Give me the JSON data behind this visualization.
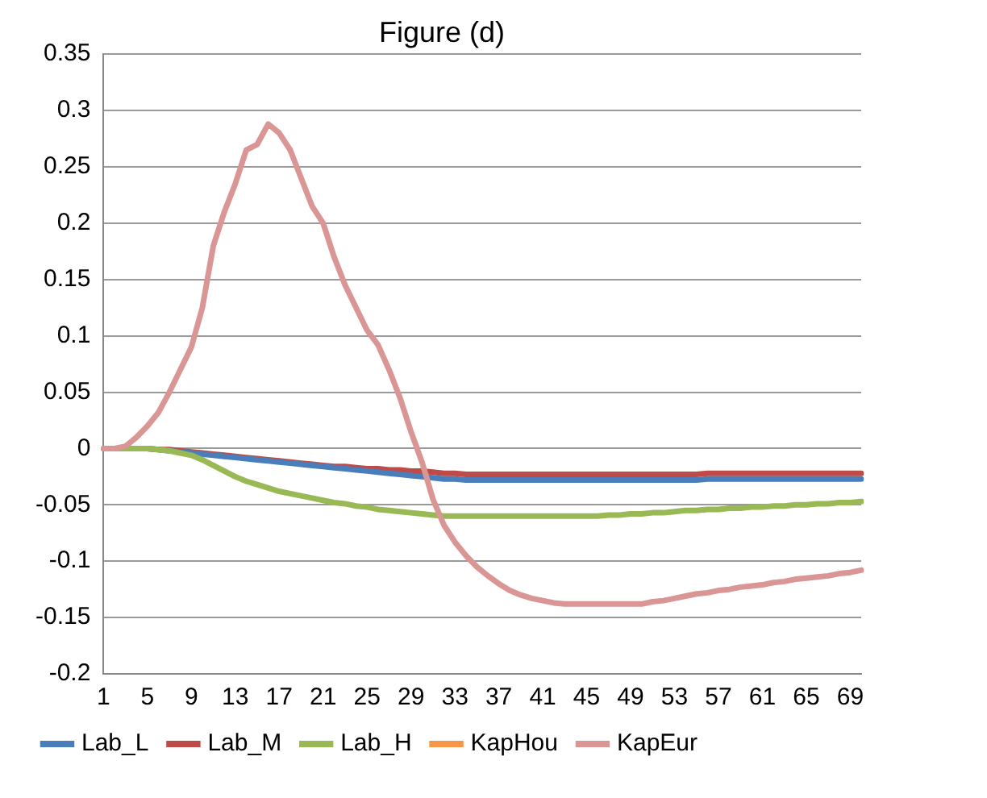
{
  "chart_data": {
    "type": "line",
    "title": "Figure (d)",
    "categories": [
      "1",
      null,
      null,
      null,
      "5",
      null,
      null,
      null,
      "9",
      null,
      null,
      null,
      "13",
      null,
      null,
      null,
      "17",
      null,
      null,
      null,
      "21",
      null,
      null,
      null,
      "25",
      null,
      null,
      null,
      "29",
      null,
      null,
      null,
      "33",
      null,
      null,
      null,
      "37",
      null,
      null,
      null,
      "41",
      null,
      null,
      null,
      "45",
      null,
      null,
      null,
      "49",
      null,
      null,
      null,
      "53",
      null,
      null,
      null,
      "57",
      null,
      null,
      null,
      "61",
      null,
      null,
      null,
      "65",
      null,
      null,
      null,
      "69",
      null
    ],
    "ylim": [
      -0.2,
      0.35
    ],
    "yticks": [
      {
        "value": -0.2,
        "label": "-0.2"
      },
      {
        "value": -0.15,
        "label": "-0.15"
      },
      {
        "value": -0.1,
        "label": "-0.1"
      },
      {
        "value": -0.05,
        "label": "-0.05"
      },
      {
        "value": 0,
        "label": "0"
      },
      {
        "value": 0.05,
        "label": "0.05"
      },
      {
        "value": 0.1,
        "label": "0.1"
      },
      {
        "value": 0.15,
        "label": "0.15"
      },
      {
        "value": 0.2,
        "label": "0.2"
      },
      {
        "value": 0.25,
        "label": "0.25"
      },
      {
        "value": 0.3,
        "label": "0.3"
      },
      {
        "value": 0.35,
        "label": "0.35"
      }
    ],
    "grid": "y",
    "legend": "bottom",
    "marker": "none",
    "line_style": "solid",
    "series": [
      {
        "name": "Lab_L",
        "color": "#4a7ebb",
        "values": [
          null,
          null,
          null,
          null,
          0,
          -0.001,
          -0.002,
          -0.003,
          -0.004,
          -0.005,
          -0.006,
          -0.007,
          -0.008,
          -0.009,
          -0.01,
          -0.011,
          -0.012,
          -0.013,
          -0.014,
          -0.015,
          -0.016,
          -0.017,
          -0.018,
          -0.019,
          -0.02,
          -0.021,
          -0.022,
          -0.023,
          -0.024,
          -0.025,
          -0.026,
          -0.027,
          -0.027,
          -0.028,
          -0.028,
          -0.028,
          -0.028,
          -0.028,
          -0.028,
          -0.028,
          -0.028,
          -0.028,
          -0.028,
          -0.028,
          -0.028,
          -0.028,
          -0.028,
          -0.028,
          -0.028,
          -0.028,
          -0.028,
          -0.028,
          -0.028,
          -0.028,
          -0.028,
          -0.027,
          -0.027,
          -0.027,
          -0.027,
          -0.027,
          -0.027,
          -0.027,
          -0.027,
          -0.027,
          -0.027,
          -0.027,
          -0.027,
          -0.027,
          -0.027,
          -0.027
        ]
      },
      {
        "name": "Lab_M",
        "color": "#be4b48",
        "values": [
          null,
          null,
          null,
          null,
          0,
          -0.001,
          -0.001,
          -0.002,
          -0.003,
          -0.004,
          -0.005,
          -0.006,
          -0.007,
          -0.008,
          -0.009,
          -0.01,
          -0.011,
          -0.012,
          -0.013,
          -0.014,
          -0.015,
          -0.016,
          -0.016,
          -0.017,
          -0.018,
          -0.018,
          -0.019,
          -0.019,
          -0.02,
          -0.02,
          -0.021,
          -0.022,
          -0.022,
          -0.023,
          -0.023,
          -0.023,
          -0.023,
          -0.023,
          -0.023,
          -0.023,
          -0.023,
          -0.023,
          -0.023,
          -0.023,
          -0.023,
          -0.023,
          -0.023,
          -0.023,
          -0.023,
          -0.023,
          -0.023,
          -0.023,
          -0.023,
          -0.023,
          -0.023,
          -0.022,
          -0.022,
          -0.022,
          -0.022,
          -0.022,
          -0.022,
          -0.022,
          -0.022,
          -0.022,
          -0.022,
          -0.022,
          -0.022,
          -0.022,
          -0.022,
          -0.022
        ]
      },
      {
        "name": "Lab_H",
        "color": "#98b954",
        "values": [
          0,
          0,
          0,
          0,
          0,
          -0.001,
          -0.002,
          -0.004,
          -0.006,
          -0.01,
          -0.015,
          -0.02,
          -0.025,
          -0.029,
          -0.032,
          -0.035,
          -0.038,
          -0.04,
          -0.042,
          -0.044,
          -0.046,
          -0.048,
          -0.049,
          -0.051,
          -0.052,
          -0.054,
          -0.055,
          -0.056,
          -0.057,
          -0.058,
          -0.059,
          -0.06,
          -0.06,
          -0.06,
          -0.06,
          -0.06,
          -0.06,
          -0.06,
          -0.06,
          -0.06,
          -0.06,
          -0.06,
          -0.06,
          -0.06,
          -0.06,
          -0.06,
          -0.059,
          -0.059,
          -0.058,
          -0.058,
          -0.057,
          -0.057,
          -0.056,
          -0.055,
          -0.055,
          -0.054,
          -0.054,
          -0.053,
          -0.053,
          -0.052,
          -0.052,
          -0.051,
          -0.051,
          -0.05,
          -0.05,
          -0.049,
          -0.049,
          -0.048,
          -0.048,
          -0.047
        ]
      },
      {
        "name": "KapHou",
        "color": "#f79646",
        "values": [
          null,
          null,
          null,
          null,
          null,
          null,
          null,
          null,
          null,
          null,
          null,
          null,
          null,
          null,
          null,
          null,
          null,
          null,
          null,
          null,
          null,
          null,
          null,
          null,
          null,
          null,
          null,
          null,
          null,
          null,
          null,
          null,
          null,
          null,
          null,
          null,
          null,
          null,
          null,
          null,
          null,
          null,
          null,
          null,
          null,
          null,
          null,
          null,
          null,
          null,
          null,
          null,
          null,
          null,
          null,
          null,
          null,
          null,
          null,
          null,
          null,
          null,
          null,
          null,
          null,
          null,
          null,
          null,
          null,
          null
        ]
      },
      {
        "name": "KapEur",
        "color": "#d99694",
        "values": [
          0,
          0,
          0.002,
          0.01,
          0.02,
          0.032,
          0.05,
          0.07,
          0.09,
          0.125,
          0.18,
          0.21,
          0.235,
          0.265,
          0.27,
          0.288,
          0.28,
          0.265,
          0.24,
          0.215,
          0.2,
          0.17,
          0.145,
          0.125,
          0.105,
          0.092,
          0.07,
          0.045,
          0.015,
          -0.012,
          -0.045,
          -0.068,
          -0.083,
          -0.095,
          -0.105,
          -0.113,
          -0.12,
          -0.126,
          -0.13,
          -0.133,
          -0.135,
          -0.137,
          -0.138,
          -0.138,
          -0.138,
          -0.138,
          -0.138,
          -0.138,
          -0.138,
          -0.138,
          -0.136,
          -0.135,
          -0.133,
          -0.131,
          -0.129,
          -0.128,
          -0.126,
          -0.125,
          -0.123,
          -0.122,
          -0.121,
          -0.119,
          -0.118,
          -0.116,
          -0.115,
          -0.114,
          -0.113,
          -0.111,
          -0.11,
          -0.108
        ]
      }
    ]
  }
}
